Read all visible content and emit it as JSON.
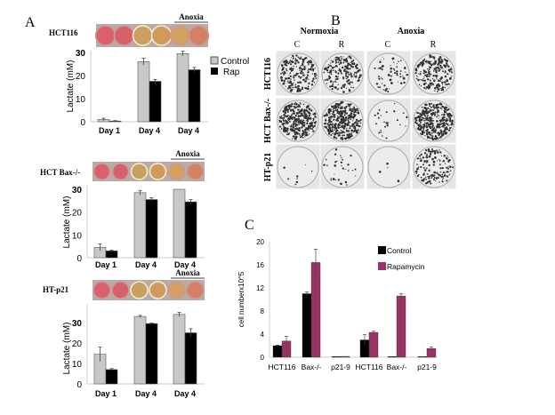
{
  "panel_a": {
    "label": "A",
    "legend": [
      "Control",
      "Rap"
    ],
    "colors": {
      "control": "#c8c8c8",
      "rap": "#000000"
    },
    "anoxia_label": "Anoxia",
    "charts": [
      {
        "title": "HCT116",
        "ylabel": "Lactate (mM)",
        "yticks": [
          "30",
          "20",
          "10",
          "0"
        ],
        "ylim": [
          0,
          30
        ],
        "categories": [
          "Day 1",
          "Day 4",
          "Day 4"
        ],
        "series": [
          {
            "name": "Control",
            "values": [
              1,
              26,
              29.5
            ],
            "err": [
              0.5,
              1.5,
              1
            ]
          },
          {
            "name": "Rap",
            "values": [
              0.3,
              17.5,
              22.5
            ],
            "err": [
              0.2,
              0.8,
              1
            ]
          }
        ]
      },
      {
        "title": "HCT Bax-/-",
        "ylabel": "Lactate (mM)",
        "yticks": [
          "30",
          "20",
          "10",
          "0"
        ],
        "ylim": [
          0,
          30
        ],
        "categories": [
          "Day 1",
          "Day 4",
          "Day 4"
        ],
        "series": [
          {
            "name": "Control",
            "values": [
              4.5,
              28.5,
              30
            ],
            "err": [
              1.5,
              1,
              0
            ]
          },
          {
            "name": "Rap",
            "values": [
              3,
              25.5,
              24.5
            ],
            "err": [
              0.3,
              0.8,
              1
            ]
          }
        ]
      },
      {
        "title": "HT-p21",
        "ylabel": "Lactate (mM)",
        "yticks": [
          "30",
          "20",
          "10",
          "0"
        ],
        "ylim": [
          0,
          30
        ],
        "categories": [
          "Day 1",
          "Day 4",
          "Day 4"
        ],
        "series": [
          {
            "name": "Control",
            "values": [
              14.5,
              33,
              34
            ],
            "err": [
              3.5,
              0.5,
              1
            ]
          },
          {
            "name": "Rap",
            "values": [
              7,
              29.5,
              25
            ],
            "err": [
              0.5,
              0.3,
              2
            ]
          }
        ]
      }
    ]
  },
  "panel_b": {
    "label": "B",
    "conditions": [
      "Normoxia",
      "Anoxia"
    ],
    "columns": [
      "C",
      "R",
      "C",
      "R"
    ],
    "rows": [
      "HCT116",
      "HCT Bax-/-",
      "HT-p21"
    ]
  },
  "chart_data": {
    "type": "bar",
    "panel": "C",
    "ylabel": "cell numberx10^5",
    "ylim": [
      0,
      20
    ],
    "yticks": [
      "20",
      "16",
      "12",
      "8",
      "4",
      "0"
    ],
    "categories": [
      "HCT116",
      "Bax-/-",
      "p21-9",
      "HCT116",
      "Bax-/-",
      "p21-9"
    ],
    "series": [
      {
        "name": "Control",
        "color": "#000000",
        "values": [
          2,
          11,
          0.1,
          3,
          0.05,
          0.05
        ],
        "err": [
          0.1,
          0.3,
          0,
          0.9,
          0,
          0
        ]
      },
      {
        "name": "Rapamycin",
        "color": "#993366",
        "values": [
          2.8,
          16.4,
          0.15,
          4.3,
          10.6,
          1.5
        ],
        "err": [
          0.8,
          2.3,
          0,
          0.2,
          0.4,
          0.3
        ]
      }
    ],
    "legend": "top-right"
  }
}
